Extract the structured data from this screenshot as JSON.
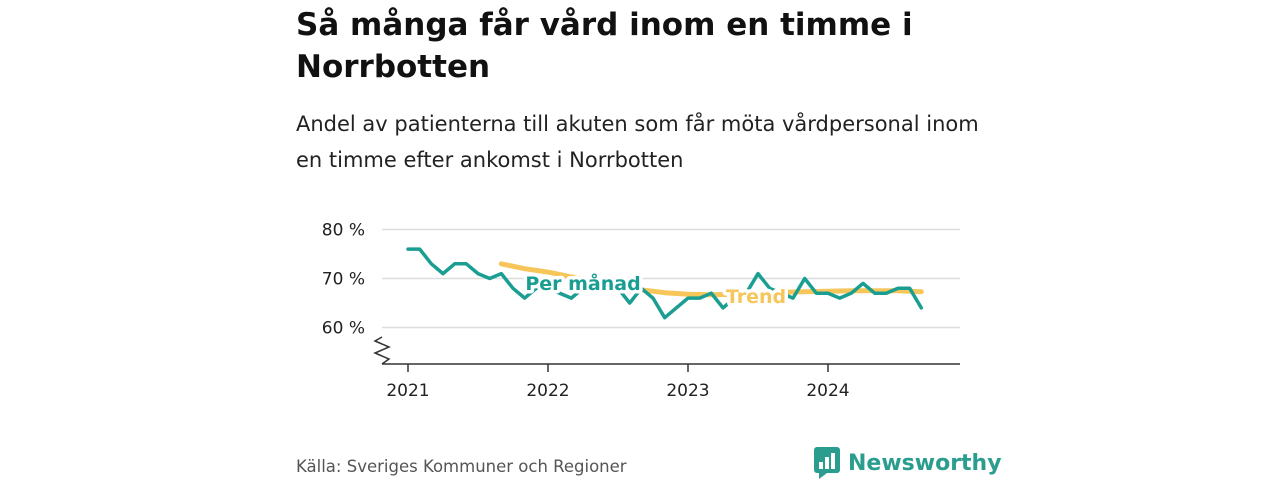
{
  "header": {
    "title": "Så många får vård inom en timme i Norrbotten",
    "subtitle": "Andel av patienterna till akuten som får möta vårdpersonal inom en timme efter ankomst i Norrbotten"
  },
  "footer": {
    "source": "Källa: Sveriges Kommuner och Regioner",
    "brand": "Newsworthy"
  },
  "colors": {
    "monthly": "#1a9e92",
    "trend": "#f6c65b",
    "grid": "#dddddd",
    "axis": "#333333"
  },
  "chart_data": {
    "type": "line",
    "title": "Så många får vård inom en timme i Norrbotten",
    "subtitle": "Andel av patienterna till akuten som får möta vårdpersonal inom en timme efter ankomst i Norrbotten",
    "xlabel": "",
    "ylabel": "",
    "y_unit": "%",
    "ylim": [
      53,
      80
    ],
    "y_ticks": [
      60,
      70,
      80
    ],
    "y_tick_labels": [
      "60 %",
      "70 %",
      "80 %"
    ],
    "y_axis_break": true,
    "x_ticks": [
      "2021-01",
      "2022-01",
      "2023-01",
      "2024-01"
    ],
    "x_tick_labels": [
      "2021",
      "2022",
      "2023",
      "2024"
    ],
    "grid": true,
    "legend": "inline",
    "series": [
      {
        "name": "Per månad",
        "points": [
          [
            "2021-01",
            76
          ],
          [
            "2021-02",
            76
          ],
          [
            "2021-03",
            73
          ],
          [
            "2021-04",
            71
          ],
          [
            "2021-05",
            73
          ],
          [
            "2021-06",
            73
          ],
          [
            "2021-07",
            71
          ],
          [
            "2021-08",
            70
          ],
          [
            "2021-09",
            71
          ],
          [
            "2021-10",
            68
          ],
          [
            "2021-11",
            66
          ],
          [
            "2021-12",
            68
          ],
          [
            "2022-01",
            68
          ],
          [
            "2022-02",
            67
          ],
          [
            "2022-03",
            66
          ],
          [
            "2022-04",
            68
          ],
          [
            "2022-05",
            68
          ],
          [
            "2022-06",
            68
          ],
          [
            "2022-07",
            68
          ],
          [
            "2022-08",
            65
          ],
          [
            "2022-09",
            68
          ],
          [
            "2022-10",
            66
          ],
          [
            "2022-11",
            62
          ],
          [
            "2022-12",
            64
          ],
          [
            "2023-01",
            66
          ],
          [
            "2023-02",
            66
          ],
          [
            "2023-03",
            67
          ],
          [
            "2023-04",
            64
          ],
          [
            "2023-05",
            66
          ],
          [
            "2023-06",
            67
          ],
          [
            "2023-07",
            71
          ],
          [
            "2023-08",
            68
          ],
          [
            "2023-09",
            67
          ],
          [
            "2023-10",
            66
          ],
          [
            "2023-11",
            70
          ],
          [
            "2023-12",
            67
          ],
          [
            "2024-01",
            67
          ],
          [
            "2024-02",
            66
          ],
          [
            "2024-03",
            67
          ],
          [
            "2024-04",
            69
          ],
          [
            "2024-05",
            67
          ],
          [
            "2024-06",
            67
          ],
          [
            "2024-07",
            68
          ],
          [
            "2024-08",
            68
          ],
          [
            "2024-09",
            64
          ]
        ]
      },
      {
        "name": "Trend",
        "points": [
          [
            "2021-09",
            73
          ],
          [
            "2021-11",
            72
          ],
          [
            "2022-01",
            71.3
          ],
          [
            "2022-03",
            70.3
          ],
          [
            "2022-05",
            69.3
          ],
          [
            "2022-07",
            68.4
          ],
          [
            "2022-09",
            67.7
          ],
          [
            "2022-11",
            67.1
          ],
          [
            "2023-01",
            66.8
          ],
          [
            "2023-03",
            66.7
          ],
          [
            "2023-05",
            66.8
          ],
          [
            "2023-07",
            67.0
          ],
          [
            "2023-09",
            67.2
          ],
          [
            "2023-11",
            67.3
          ],
          [
            "2024-01",
            67.4
          ],
          [
            "2024-03",
            67.5
          ],
          [
            "2024-05",
            67.5
          ],
          [
            "2024-07",
            67.5
          ],
          [
            "2024-09",
            67.3
          ]
        ]
      }
    ]
  }
}
